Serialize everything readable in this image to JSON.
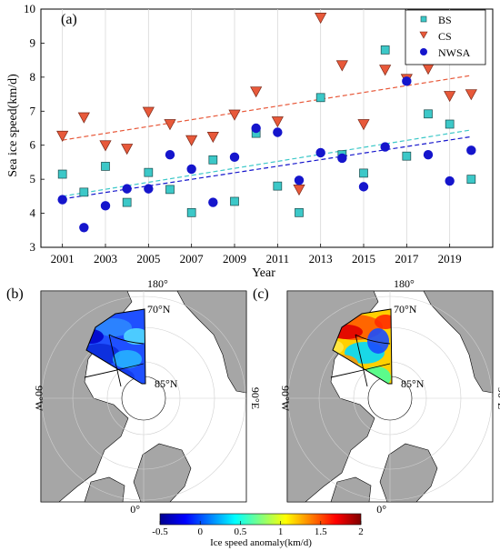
{
  "chart_data": [
    {
      "type": "scatter",
      "panel_label": "(a)",
      "xlabel": "Year",
      "ylabel": "Sea ice speed(km/d)",
      "xlim": [
        2000,
        2021
      ],
      "ylim": [
        3,
        10
      ],
      "x_ticks": [
        2001,
        2003,
        2005,
        2007,
        2009,
        2011,
        2013,
        2015,
        2017,
        2019
      ],
      "y_ticks": [
        3,
        4,
        5,
        6,
        7,
        8,
        9,
        10
      ],
      "grid": "vertical",
      "legend_position": "top-right",
      "series": [
        {
          "name": "BS",
          "marker": "square",
          "color": "#3cc8c8",
          "x": [
            2001,
            2002,
            2003,
            2004,
            2005,
            2006,
            2007,
            2008,
            2009,
            2010,
            2011,
            2012,
            2013,
            2014,
            2015,
            2016,
            2017,
            2018,
            2019,
            2020
          ],
          "values": [
            5.15,
            4.62,
            5.38,
            4.32,
            5.2,
            4.7,
            4.02,
            5.57,
            4.35,
            6.35,
            4.8,
            4.02,
            7.4,
            5.72,
            5.18,
            8.8,
            5.68,
            6.92,
            6.62,
            5.0
          ],
          "trend": [
            4.5,
            6.45
          ]
        },
        {
          "name": "CS",
          "marker": "triangle-down",
          "color": "#e8593a",
          "x": [
            2001,
            2002,
            2003,
            2004,
            2005,
            2006,
            2007,
            2008,
            2009,
            2010,
            2011,
            2012,
            2013,
            2014,
            2015,
            2016,
            2017,
            2018,
            2019,
            2020
          ],
          "values": [
            6.28,
            6.82,
            6.0,
            5.9,
            6.98,
            6.62,
            6.15,
            6.25,
            6.9,
            7.58,
            6.7,
            4.7,
            9.75,
            8.35,
            6.62,
            8.22,
            7.95,
            8.25,
            7.45,
            7.5
          ],
          "trend": [
            6.15,
            8.05
          ]
        },
        {
          "name": "NWSA",
          "marker": "circle",
          "color": "#1515cc",
          "x": [
            2001,
            2002,
            2003,
            2004,
            2005,
            2006,
            2007,
            2008,
            2009,
            2010,
            2011,
            2012,
            2013,
            2014,
            2015,
            2016,
            2017,
            2018,
            2019,
            2020
          ],
          "values": [
            4.4,
            3.58,
            4.22,
            4.72,
            4.72,
            5.72,
            5.3,
            4.32,
            5.65,
            6.5,
            6.38,
            4.97,
            5.78,
            5.62,
            4.78,
            5.95,
            7.88,
            5.72,
            4.95,
            5.85
          ],
          "trend": [
            4.42,
            6.25
          ]
        }
      ]
    },
    {
      "type": "heatmap",
      "panel_label": "(b)",
      "labels": {
        "top": "180°",
        "lat70": "70°N",
        "lat85": "85°N",
        "left": "90°W",
        "right": "90°E",
        "bottom": "0°"
      }
    },
    {
      "type": "heatmap",
      "panel_label": "(c)",
      "labels": {
        "top": "180°",
        "lat70": "70°N",
        "lat85": "85°N",
        "left": "90°W",
        "right": "90°E",
        "bottom": "0°"
      }
    }
  ],
  "colorbar": {
    "label": "Ice speed anomaly(km/d)",
    "range": [
      -0.5,
      2
    ],
    "ticks": [
      "-0.5",
      "0",
      "0.5",
      "1",
      "1.5",
      "2"
    ],
    "colors": [
      "#00008f",
      "#0000ff",
      "#0080ff",
      "#00ffff",
      "#80ff80",
      "#ffff00",
      "#ff8000",
      "#ff0000",
      "#800000"
    ]
  }
}
